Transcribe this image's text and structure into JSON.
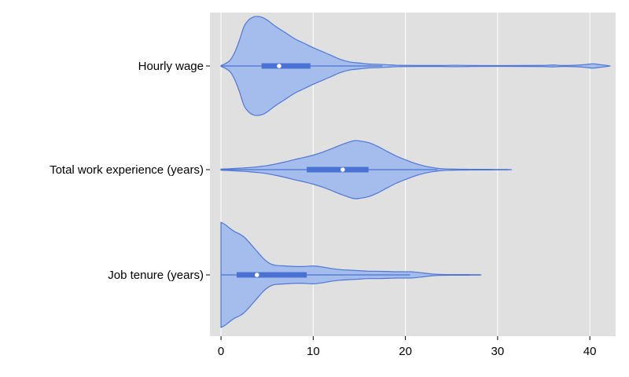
{
  "chart_data": {
    "type": "violin",
    "orientation": "horizontal",
    "title": "",
    "xlabel": "",
    "ylabel": "",
    "xlim": [
      -1.2,
      42.8
    ],
    "x_ticks": [
      0,
      10,
      20,
      30,
      40
    ],
    "grid": "vertical major gridlines on",
    "colors": {
      "panel": "#e0e0e0",
      "grid": "#ffffff",
      "violin_fill": "#a5bdec",
      "violin_edge": "#4f77d6",
      "box": "#4a72d4",
      "median": "#ffffff"
    },
    "categories": [
      "Hourly wage",
      "Total work experience (years)",
      "Job tenure (years)"
    ],
    "series": [
      {
        "category": "Hourly wage",
        "min": 0,
        "max": 42.2,
        "q1": 4.4,
        "median": 6.3,
        "q3": 9.7,
        "whisker_low": 0,
        "whisker_high": 17.5,
        "density": [
          [
            0,
            0.01
          ],
          [
            0.5,
            0.05
          ],
          [
            1,
            0.12
          ],
          [
            1.5,
            0.28
          ],
          [
            2,
            0.52
          ],
          [
            2.5,
            0.8
          ],
          [
            3,
            0.93
          ],
          [
            3.5,
            0.99
          ],
          [
            4,
            1.0
          ],
          [
            4.5,
            0.98
          ],
          [
            5,
            0.93
          ],
          [
            5.5,
            0.86
          ],
          [
            6,
            0.79
          ],
          [
            7,
            0.67
          ],
          [
            8,
            0.55
          ],
          [
            9,
            0.46
          ],
          [
            10,
            0.37
          ],
          [
            11,
            0.29
          ],
          [
            12,
            0.21
          ],
          [
            13,
            0.13
          ],
          [
            14,
            0.08
          ],
          [
            15,
            0.06
          ],
          [
            16,
            0.04
          ],
          [
            17,
            0.035
          ],
          [
            18,
            0.025
          ],
          [
            19,
            0.015
          ],
          [
            20,
            0.012
          ],
          [
            22,
            0.01
          ],
          [
            24,
            0.01
          ],
          [
            25.5,
            0.015
          ],
          [
            27,
            0.01
          ],
          [
            30,
            0.008
          ],
          [
            33,
            0.01
          ],
          [
            35,
            0.012
          ],
          [
            36,
            0.02
          ],
          [
            37,
            0.01
          ],
          [
            38,
            0.012
          ],
          [
            39.5,
            0.028
          ],
          [
            40.3,
            0.045
          ],
          [
            41,
            0.03
          ],
          [
            41.7,
            0.015
          ],
          [
            42.2,
            0.0
          ]
        ]
      },
      {
        "category": "Total work experience (years)",
        "min": 0,
        "max": 31.5,
        "q1": 9.3,
        "median": 13.2,
        "q3": 16.0,
        "whisker_low": 0,
        "whisker_high": 23.5,
        "density": [
          [
            0,
            0.02
          ],
          [
            1,
            0.03
          ],
          [
            2,
            0.05
          ],
          [
            3,
            0.07
          ],
          [
            4,
            0.1
          ],
          [
            5,
            0.14
          ],
          [
            6,
            0.2
          ],
          [
            7,
            0.27
          ],
          [
            8,
            0.35
          ],
          [
            9,
            0.42
          ],
          [
            10,
            0.5
          ],
          [
            11,
            0.6
          ],
          [
            12,
            0.72
          ],
          [
            13,
            0.85
          ],
          [
            14,
            0.96
          ],
          [
            14.5,
            1.0
          ],
          [
            15,
            0.99
          ],
          [
            16,
            0.93
          ],
          [
            17,
            0.8
          ],
          [
            18,
            0.63
          ],
          [
            19,
            0.47
          ],
          [
            20,
            0.34
          ],
          [
            21,
            0.22
          ],
          [
            22,
            0.13
          ],
          [
            23,
            0.07
          ],
          [
            24,
            0.03
          ],
          [
            25,
            0.02
          ],
          [
            26,
            0.015
          ],
          [
            27,
            0.012
          ],
          [
            28,
            0.01
          ],
          [
            29,
            0.01
          ],
          [
            30,
            0.008
          ],
          [
            31,
            0.006
          ],
          [
            31.5,
            0.0
          ]
        ]
      },
      {
        "category": "Job tenure (years)",
        "min": 0,
        "max": 28.2,
        "q1": 1.7,
        "median": 3.9,
        "q3": 9.3,
        "whisker_low": 0,
        "whisker_high": 20.5,
        "density": [
          [
            0,
            1.0
          ],
          [
            0.5,
            0.95
          ],
          [
            1,
            0.88
          ],
          [
            1.5,
            0.82
          ],
          [
            2,
            0.78
          ],
          [
            2.5,
            0.72
          ],
          [
            3,
            0.63
          ],
          [
            3.5,
            0.53
          ],
          [
            4,
            0.43
          ],
          [
            4.5,
            0.33
          ],
          [
            5,
            0.25
          ],
          [
            5.5,
            0.2
          ],
          [
            6,
            0.18
          ],
          [
            7,
            0.17
          ],
          [
            8,
            0.16
          ],
          [
            9,
            0.16
          ],
          [
            10,
            0.17
          ],
          [
            11,
            0.15
          ],
          [
            12,
            0.12
          ],
          [
            13,
            0.1
          ],
          [
            14,
            0.09
          ],
          [
            15,
            0.08
          ],
          [
            16,
            0.07
          ],
          [
            17,
            0.07
          ],
          [
            18,
            0.065
          ],
          [
            19,
            0.06
          ],
          [
            20,
            0.06
          ],
          [
            20.5,
            0.06
          ],
          [
            21,
            0.055
          ],
          [
            22,
            0.035
          ],
          [
            23,
            0.015
          ],
          [
            24,
            0.008
          ],
          [
            25,
            0.006
          ],
          [
            26,
            0.006
          ],
          [
            27,
            0.005
          ],
          [
            28,
            0.004
          ],
          [
            28.2,
            0.0
          ]
        ]
      }
    ]
  }
}
